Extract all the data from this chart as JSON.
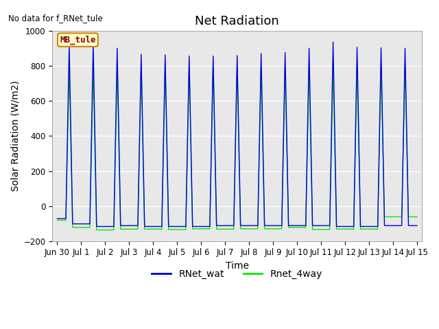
{
  "title": "Net Radiation",
  "xlabel": "Time",
  "ylabel": "Solar Radiation (W/m2)",
  "no_data_text": "No data for f_RNet_tule",
  "legend_label_text": "MB_tule",
  "ylim": [
    -200,
    1000
  ],
  "xlim_start": -0.2,
  "xlim_end": 15.2,
  "xtick_labels": [
    "Jun 30",
    "Jul 1",
    "Jul 2",
    "Jul 3",
    "Jul 4",
    "Jul 5",
    "Jul 6",
    "Jul 7",
    "Jul 8",
    "Jul 9",
    "Jul 10",
    "Jul 11",
    "Jul 12",
    "Jul 13",
    "Jul 14",
    "Jul 15"
  ],
  "xtick_positions": [
    0,
    1,
    2,
    3,
    4,
    5,
    6,
    7,
    8,
    9,
    10,
    11,
    12,
    13,
    14,
    15
  ],
  "line1_color": "#0000dd",
  "line2_color": "#00ee00",
  "line1_label": "RNet_wat",
  "line2_label": "Rnet_4way",
  "background_color": "#e8e8e8",
  "title_fontsize": 13,
  "axis_fontsize": 10,
  "tick_fontsize": 8.5,
  "day_peaks_blue": [
    920,
    925,
    900,
    865,
    862,
    855,
    855,
    858,
    870,
    875,
    900,
    935,
    905,
    902,
    900
  ],
  "day_peaks_green": [
    800,
    800,
    800,
    805,
    810,
    810,
    808,
    802,
    800,
    800,
    800,
    802,
    800,
    800,
    800
  ],
  "night_vals_blue": [
    -70,
    -100,
    -115,
    -110,
    -115,
    -115,
    -115,
    -110,
    -110,
    -110,
    -110,
    -110,
    -115,
    -115,
    -110
  ],
  "night_vals_green": [
    -80,
    -120,
    -135,
    -130,
    -130,
    -132,
    -128,
    -130,
    -128,
    -128,
    -120,
    -132,
    -130,
    -130,
    -60
  ]
}
